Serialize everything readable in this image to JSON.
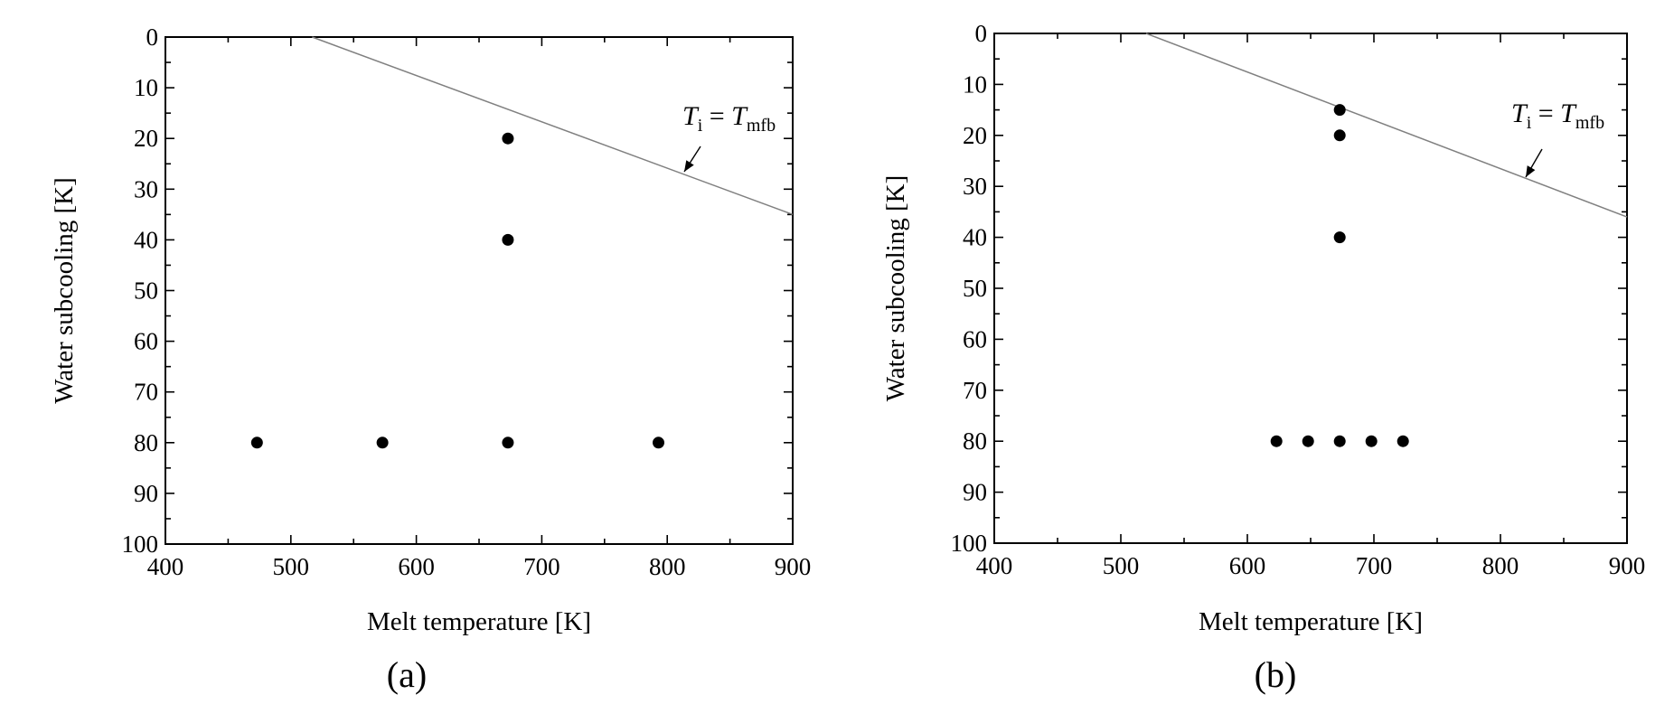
{
  "chart_data": [
    {
      "type": "scatter",
      "panel_label": "(a)",
      "xlabel": "Melt temperature [K]",
      "ylabel": "Water subcooling [K]",
      "xlim": [
        400,
        900
      ],
      "ylim": [
        0,
        100
      ],
      "y_inverted": true,
      "xticks": [
        400,
        500,
        600,
        700,
        800,
        900
      ],
      "yticks": [
        0,
        10,
        20,
        30,
        40,
        50,
        60,
        70,
        80,
        90,
        100
      ],
      "grid": false,
      "series": [
        {
          "x": [
            673,
            673,
            473,
            573,
            673,
            793
          ],
          "y": [
            20,
            40,
            80,
            80,
            80,
            80
          ]
        }
      ],
      "reference_line": {
        "label_main": "T",
        "label_sub_i": "i",
        "label_eq": " = ",
        "label_main2": "T",
        "label_sub_mfb": "mfb",
        "points": [
          [
            517,
            0
          ],
          [
            900,
            35
          ]
        ],
        "color": "#808080"
      }
    },
    {
      "type": "scatter",
      "panel_label": "(b)",
      "xlabel": "Melt temperature [K]",
      "ylabel": "Water subcooling [K]",
      "xlim": [
        400,
        900
      ],
      "ylim": [
        0,
        100
      ],
      "y_inverted": true,
      "xticks": [
        400,
        500,
        600,
        700,
        800,
        900
      ],
      "yticks": [
        0,
        10,
        20,
        30,
        40,
        50,
        60,
        70,
        80,
        90,
        100
      ],
      "grid": false,
      "series": [
        {
          "x": [
            673,
            673,
            673,
            623,
            648,
            673,
            698,
            723
          ],
          "y": [
            15,
            20,
            40,
            80,
            80,
            80,
            80,
            80
          ]
        }
      ],
      "reference_line": {
        "label_main": "T",
        "label_sub_i": "i",
        "label_eq": " = ",
        "label_main2": "T",
        "label_sub_mfb": "mfb",
        "points": [
          [
            520,
            0
          ],
          [
            900,
            36
          ]
        ],
        "color": "#808080"
      }
    }
  ]
}
